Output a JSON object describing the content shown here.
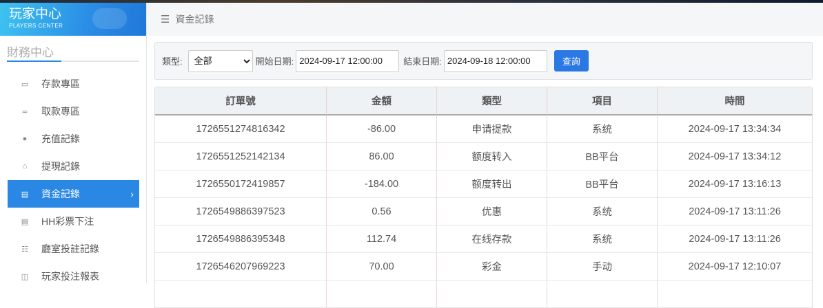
{
  "logo": {
    "title": "玩家中心",
    "subtitle": "PLAYERS CENTER"
  },
  "sidebar": {
    "section": "財務中心",
    "items": [
      {
        "label": "存款專區",
        "icon": "card-icon",
        "glyph": "▭"
      },
      {
        "label": "取款專區",
        "icon": "hand-money-icon",
        "glyph": "≂"
      },
      {
        "label": "充值記錄",
        "icon": "money-bag-icon",
        "glyph": "●"
      },
      {
        "label": "提現記錄",
        "icon": "wallet-icon",
        "glyph": "⌂"
      },
      {
        "label": "資金記錄",
        "icon": "cash-icon",
        "glyph": "▤",
        "active": true
      },
      {
        "label": "HH彩票下注",
        "icon": "list-icon",
        "glyph": "▤"
      },
      {
        "label": "廳室投註記錄",
        "icon": "list-bullets-icon",
        "glyph": "☷"
      },
      {
        "label": "玩家投注報表",
        "icon": "chart-icon",
        "glyph": "◫"
      }
    ]
  },
  "header": {
    "breadcrumb": "資金記錄"
  },
  "filter": {
    "type_label": "類型:",
    "type_value": "全部",
    "start_label": "開始日期:",
    "start_value": "2024-09-17 12:00:00",
    "end_label": "結束日期:",
    "end_value": "2024-09-18 12:00:00",
    "query_label": "查詢"
  },
  "table": {
    "headers": [
      "訂單號",
      "金額",
      "類型",
      "項目",
      "時間"
    ],
    "rows": [
      [
        "1726551274816342",
        "-86.00",
        "申请提款",
        "系统",
        "2024-09-17 13:34:34"
      ],
      [
        "1726551252142134",
        "86.00",
        "额度转入",
        "BB平台",
        "2024-09-17 13:34:12"
      ],
      [
        "1726550172419857",
        "-184.00",
        "额度转出",
        "BB平台",
        "2024-09-17 13:16:13"
      ],
      [
        "1726549886397523",
        "0.56",
        "优惠",
        "系统",
        "2024-09-17 13:11:26"
      ],
      [
        "1726549886395348",
        "112.74",
        "在线存款",
        "系统",
        "2024-09-17 13:11:26"
      ],
      [
        "1726546207969223",
        "70.00",
        "彩金",
        "手动",
        "2024-09-17 12:10:07"
      ],
      [
        "",
        "",
        "",
        "",
        ""
      ]
    ]
  },
  "colors": {
    "accent": "#2b87e4"
  }
}
